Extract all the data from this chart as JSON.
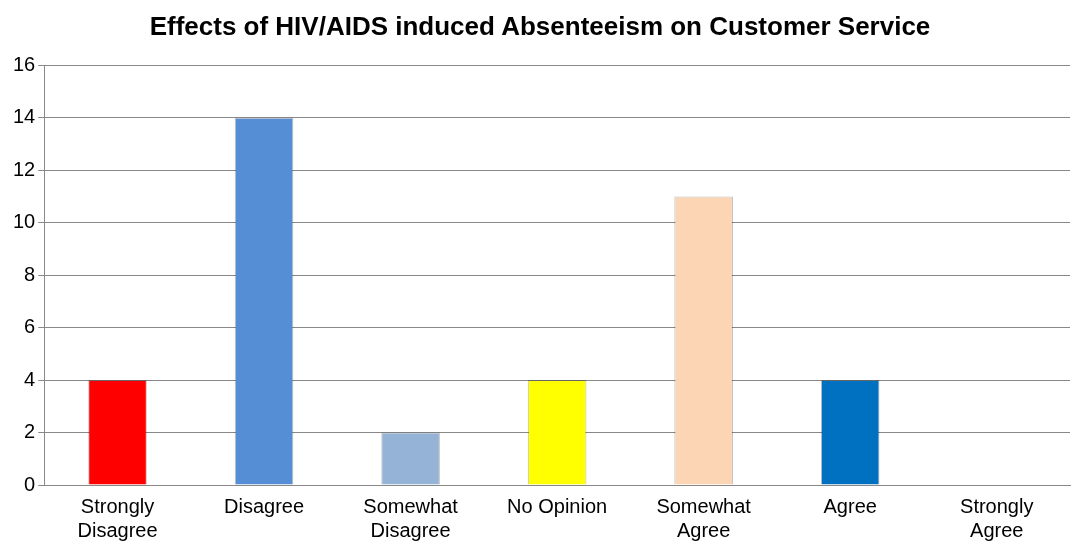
{
  "chart_data": {
    "type": "bar",
    "title": "Effects of HIV/AIDS induced Absenteeism on Customer Service",
    "categories": [
      "Strongly\nDisagree",
      "Disagree",
      "Somewhat\nDisagree",
      "No Opinion",
      "Somewhat\nAgree",
      "Agree",
      "Strongly\nAgree"
    ],
    "values": [
      4,
      14,
      2,
      4,
      11,
      4,
      0
    ],
    "colors": [
      "#ff0000",
      "#558ed5",
      "#95b3d7",
      "#ffff00",
      "#fcd5b5",
      "#0070c0",
      "#0070c0"
    ],
    "ylim": [
      0,
      16
    ],
    "yticks": [
      0,
      2,
      4,
      6,
      8,
      10,
      12,
      14,
      16
    ],
    "grid": "y",
    "legend": false
  }
}
